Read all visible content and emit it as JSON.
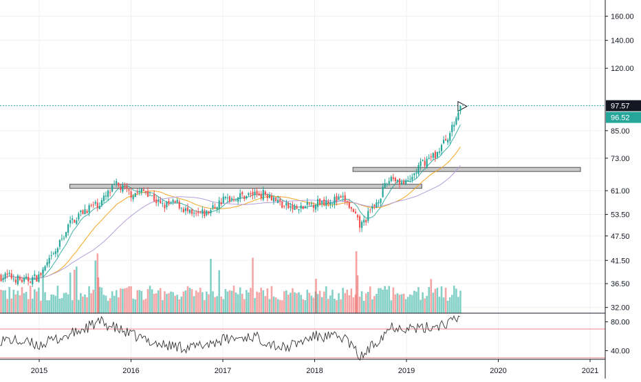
{
  "chart_data": [
    {
      "type": "candlestick",
      "panel": "price",
      "title": "",
      "xlabel": "",
      "ylabel": "",
      "scale": "log",
      "ylim": [
        31,
        175
      ],
      "grid": true,
      "y_ticks": [
        "160.00",
        "140.00",
        "120.00",
        "97.57",
        "96.52",
        "85.00",
        "73.00",
        "61.00",
        "53.50",
        "47.50",
        "41.50",
        "36.50",
        "32.00"
      ],
      "last_price_label": "97.57",
      "ma_price_label": "96.52",
      "series_close_approx": {
        "x": [
          "2014-09",
          "2014-11",
          "2015-01",
          "2015-03",
          "2015-05",
          "2015-07",
          "2015-09",
          "2015-11",
          "2016-01",
          "2016-03",
          "2016-05",
          "2016-07",
          "2016-09",
          "2016-11",
          "2017-01",
          "2017-03",
          "2017-05",
          "2017-07",
          "2017-09",
          "2017-11",
          "2018-01",
          "2018-03",
          "2018-05",
          "2018-07",
          "2018-09",
          "2018-11",
          "2019-01",
          "2019-03",
          "2019-05",
          "2019-07",
          "2019-08"
        ],
        "values": [
          38,
          37,
          38,
          43,
          51,
          55,
          57,
          63,
          60,
          61,
          56,
          57,
          53,
          54,
          58,
          59,
          60,
          60,
          56,
          55,
          57,
          58,
          58,
          50,
          57,
          66,
          63,
          71,
          75,
          86,
          97
        ]
      },
      "horizontal_levels": [
        {
          "label": "support-resistance",
          "value": 62.5,
          "x_start": "2015-05",
          "x_end": "2019-03"
        },
        {
          "label": "support-resistance",
          "value": 68.6,
          "x_start": "2018-06",
          "x_end": "2021-01"
        }
      ],
      "volume": {
        "type": "bar",
        "unit": "relative",
        "colors": {
          "up": "#83d0c6",
          "down": "#f3a6a5"
        }
      }
    },
    {
      "type": "line",
      "panel": "oscillator",
      "name": "",
      "ylim": [
        28,
        92
      ],
      "y_ticks": [
        "80.00",
        "40.00"
      ],
      "reference_lines": [
        70,
        30
      ],
      "x": [
        "2014-09",
        "2015-01",
        "2015-05",
        "2015-09",
        "2016-01",
        "2016-05",
        "2016-09",
        "2017-01",
        "2017-05",
        "2017-09",
        "2018-01",
        "2018-05",
        "2018-07",
        "2018-11",
        "2019-03",
        "2019-07",
        "2019-08"
      ],
      "values": [
        55,
        48,
        62,
        80,
        62,
        48,
        44,
        55,
        60,
        43,
        60,
        58,
        30,
        74,
        70,
        80,
        86
      ]
    }
  ],
  "x_axis_ticks": [
    "2015",
    "2016",
    "2017",
    "2018",
    "2019",
    "2020",
    "2021"
  ],
  "colors": {
    "up": "#26a69a",
    "down": "#ef5350",
    "ma_fast": "#26a69a",
    "ma_mid": "#f5a623",
    "ma_slow": "#b39ddb",
    "last_price_bg": "#131722",
    "ma_price_bg": "#26a69a",
    "level_fill": "#c8c8c8",
    "level_stroke": "#555555",
    "reference_line": "#f08080",
    "grid": "#eef0f3",
    "axis_text": "#131722"
  }
}
